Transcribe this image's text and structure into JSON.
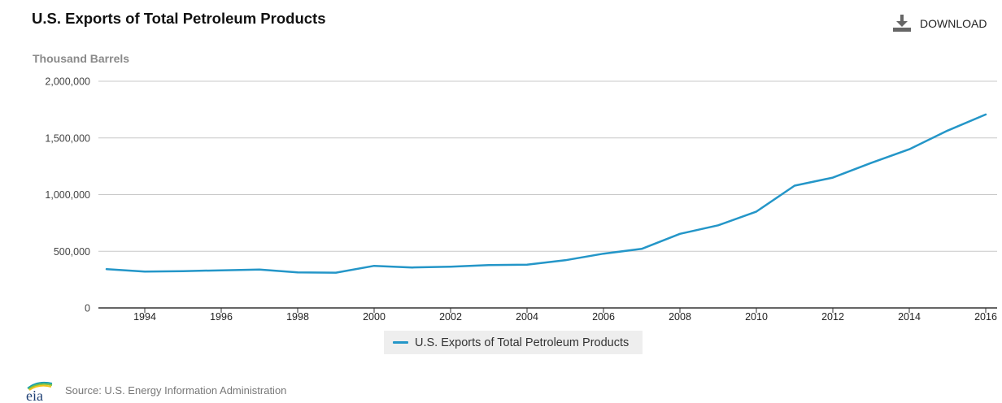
{
  "header": {
    "title": "U.S. Exports of Total Petroleum Products",
    "download_label": "DOWNLOAD",
    "download_icon": "download-icon"
  },
  "colors": {
    "series": "#2496c8",
    "grid": "#c8c8c8",
    "axis": "#333333",
    "legend_bg": "#eeeeee"
  },
  "chart_data": {
    "type": "line",
    "title": "U.S. Exports of Total Petroleum Products",
    "ylabel": "Thousand Barrels",
    "xlabel": "",
    "x": [
      1993,
      1994,
      1995,
      1996,
      1997,
      1998,
      1999,
      2000,
      2001,
      2002,
      2003,
      2004,
      2005,
      2006,
      2007,
      2008,
      2009,
      2010,
      2011,
      2012,
      2013,
      2014,
      2015,
      2016
    ],
    "series": [
      {
        "name": "U.S. Exports of Total Petroleum Products",
        "values": [
          343000,
          321000,
          325000,
          332000,
          339000,
          314000,
          311000,
          371000,
          357000,
          364000,
          378000,
          382000,
          421000,
          479000,
          521000,
          654000,
          729000,
          850000,
          1079000,
          1150000,
          1279000,
          1400000,
          1564000,
          1707000
        ]
      }
    ],
    "xlim": [
      1993,
      2016
    ],
    "ylim": [
      0,
      2000000
    ],
    "yticks": [
      0,
      500000,
      1000000,
      1500000,
      2000000
    ],
    "ytick_labels": [
      "0",
      "500,000",
      "1,000,000",
      "1,500,000",
      "2,000,000"
    ],
    "xticks": [
      1994,
      1996,
      1998,
      2000,
      2002,
      2004,
      2006,
      2008,
      2010,
      2012,
      2014,
      2016
    ],
    "xtick_labels": [
      "1994",
      "1996",
      "1998",
      "2000",
      "2002",
      "2004",
      "2006",
      "2008",
      "2010",
      "2012",
      "2014",
      "2016"
    ],
    "grid": true,
    "legend": "bottom-center"
  },
  "legend": {
    "label": "U.S. Exports of Total Petroleum Products"
  },
  "footer": {
    "logo_text": "eia",
    "source": "Source: U.S. Energy Information Administration"
  }
}
